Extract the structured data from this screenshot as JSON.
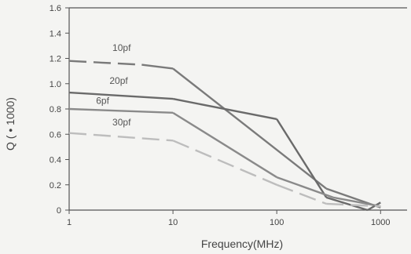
{
  "chart_data": {
    "type": "line",
    "xlabel": "Frequency(MHz)",
    "ylabel": "Q ( • 1000)",
    "x_scale": "log",
    "xlim": [
      1,
      1800
    ],
    "ylim": [
      0,
      1.6
    ],
    "x_ticks": [
      1,
      10,
      100,
      1000
    ],
    "x_tick_labels": [
      "1",
      "10",
      "100",
      "1000"
    ],
    "y_ticks": [
      0,
      0.2,
      0.4,
      0.6,
      0.8,
      1.0,
      1.2,
      1.4,
      1.6
    ],
    "y_tick_labels": [
      "0",
      "0.2",
      "0.4",
      "0.6",
      "0.8",
      "1.0",
      "1.2",
      "1.4",
      "1.6"
    ],
    "grid": false,
    "series": [
      {
        "name": "10pf",
        "color": "#7a7a7a",
        "x": [
          1,
          5,
          10,
          300,
          1000
        ],
        "y": [
          1.18,
          1.15,
          1.12,
          0.17,
          0.02
        ],
        "dash_segments": [
          [
            1,
            5
          ]
        ]
      },
      {
        "name": "20pf",
        "color": "#6a6a6a",
        "x": [
          1,
          10,
          100,
          300,
          750,
          1000
        ],
        "y": [
          0.93,
          0.88,
          0.72,
          0.1,
          0.0,
          0.06
        ],
        "dash_segments": []
      },
      {
        "name": "6pf",
        "color": "#8a8a8a",
        "x": [
          1,
          10,
          100,
          350,
          1000
        ],
        "y": [
          0.8,
          0.77,
          0.26,
          0.1,
          0.03
        ],
        "dash_segments": [
          [
            3,
            10
          ],
          [
            50,
            100
          ]
        ]
      },
      {
        "name": "30pf",
        "color": "#bdbdbd",
        "x": [
          1,
          10,
          100,
          300,
          1000
        ],
        "y": [
          0.61,
          0.55,
          0.2,
          0.05,
          0.03
        ],
        "dash_segments": [
          [
            1,
            1000
          ]
        ]
      }
    ],
    "labels": [
      {
        "series": 0,
        "text": "10pf",
        "x": 3.2,
        "y": 1.26
      },
      {
        "series": 1,
        "text": "20pf",
        "x": 3.0,
        "y": 1.0
      },
      {
        "series": 2,
        "text": "6pf",
        "x": 2.1,
        "y": 0.84
      },
      {
        "series": 3,
        "text": "30pf",
        "x": 3.2,
        "y": 0.67
      }
    ]
  }
}
